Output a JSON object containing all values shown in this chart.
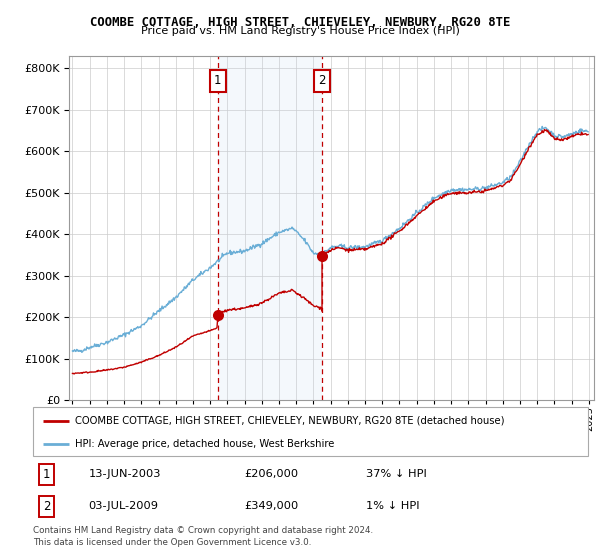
{
  "title": "COOMBE COTTAGE, HIGH STREET, CHIEVELEY, NEWBURY, RG20 8TE",
  "subtitle": "Price paid vs. HM Land Registry's House Price Index (HPI)",
  "legend_line1": "COOMBE COTTAGE, HIGH STREET, CHIEVELEY, NEWBURY, RG20 8TE (detached house)",
  "legend_line2": "HPI: Average price, detached house, West Berkshire",
  "transaction1_date": "13-JUN-2003",
  "transaction1_price": "£206,000",
  "transaction1_hpi": "37% ↓ HPI",
  "transaction1_year": 2003.45,
  "transaction1_value": 206000,
  "transaction2_date": "03-JUL-2009",
  "transaction2_price": "£349,000",
  "transaction2_hpi": "1% ↓ HPI",
  "transaction2_year": 2009.5,
  "transaction2_value": 349000,
  "footer": "Contains HM Land Registry data © Crown copyright and database right 2024.\nThis data is licensed under the Open Government Licence v3.0.",
  "hpi_color": "#6aaed6",
  "price_color": "#c00000",
  "shade_color": "#c6d9f0",
  "yticks": [
    0,
    100000,
    200000,
    300000,
    400000,
    500000,
    600000,
    700000,
    800000
  ],
  "ylim": [
    0,
    830000
  ],
  "xlim_start": 1994.8,
  "xlim_end": 2025.3
}
